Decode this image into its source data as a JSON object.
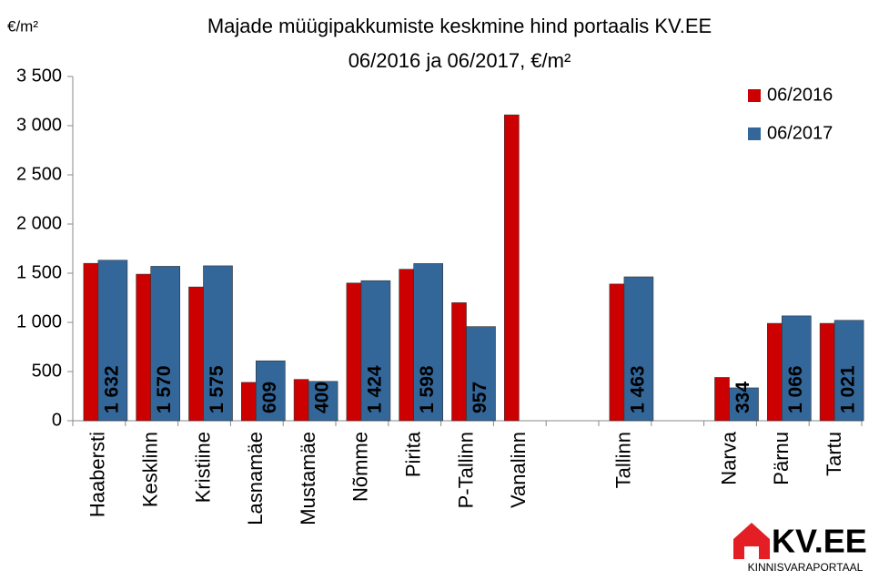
{
  "chart_data": {
    "type": "bar",
    "title": "Majade müügipakkumiste keskmine hind portaalis KV.EE",
    "subtitle": "06/2016 ja 06/2017, €/m²",
    "y_label": "€/m²",
    "categories": [
      "Haabersti",
      "Kesklinn",
      "Kristiine",
      "Lasnamäe",
      "Mustamäe",
      "Nõmme",
      "Pirita",
      "P-Tallinn",
      "Vanalinn",
      null,
      "Tallinn",
      null,
      "Narva",
      "Pärnu",
      "Tartu"
    ],
    "series": [
      {
        "name": "06/2016",
        "color": "#cc0000",
        "values": [
          1600,
          1490,
          1360,
          390,
          420,
          1400,
          1540,
          1200,
          3110,
          null,
          1390,
          null,
          440,
          990,
          990
        ]
      },
      {
        "name": "06/2017",
        "color": "#336699",
        "values": [
          1632,
          1570,
          1575,
          609,
          400,
          1424,
          1598,
          957,
          null,
          null,
          1463,
          null,
          334,
          1066,
          1021
        ],
        "value_labels": [
          "1 632",
          "1 570",
          "1 575",
          "609",
          "400",
          "1 424",
          "1 598",
          "957",
          null,
          null,
          "1 463",
          null,
          "334",
          "1 066",
          "1 021"
        ]
      }
    ],
    "ylim": [
      0,
      3500
    ],
    "yticks": [
      0,
      500,
      {
        "value": 1000,
        "label": "1 000"
      },
      {
        "value": 1500,
        "label": "1 500"
      },
      {
        "value": 2000,
        "label": "2 000"
      },
      {
        "value": 2500,
        "label": "2 500"
      },
      {
        "value": 3000,
        "label": "3 000"
      },
      {
        "value": 3500,
        "label": "3 500"
      }
    ],
    "grid": false,
    "legend": "upper right"
  },
  "logo": {
    "text": "KV.EE",
    "subtitle": "KINNISVARAPORTAAL"
  }
}
